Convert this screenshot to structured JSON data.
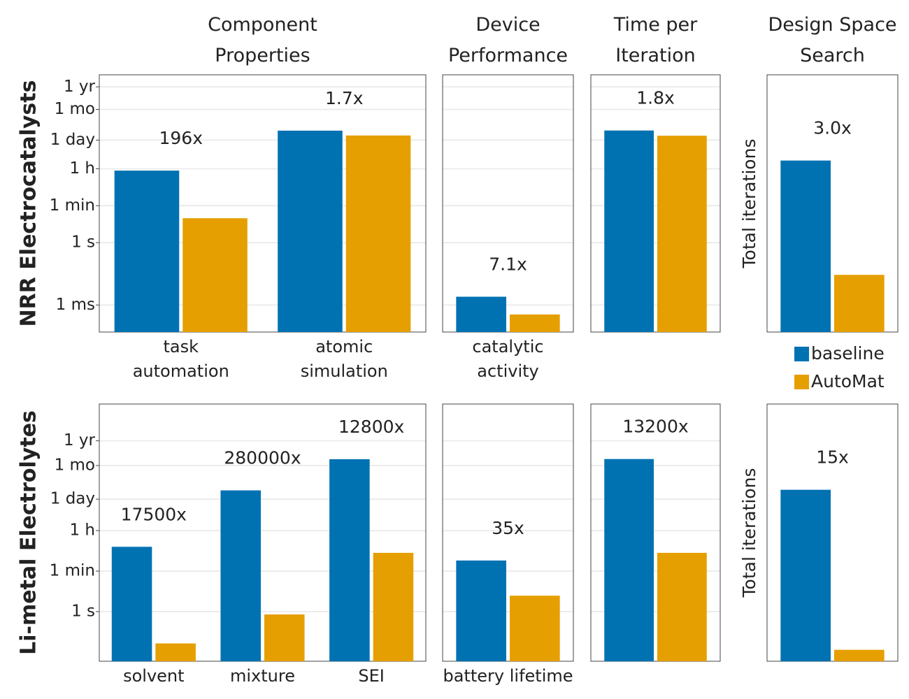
{
  "chart_data": [
    {
      "type": "bar",
      "title": "Component Properties",
      "ylabel": "NRR Electrocatalysts",
      "log_scale": true,
      "grid": true,
      "categories": [
        "task automation",
        "atomic simulation"
      ],
      "annotations": [
        "196x",
        "1.7x"
      ],
      "series": [
        {
          "name": "baseline",
          "color": "#0072b2",
          "values": [
            2940,
            246000
          ]
        },
        {
          "name": "AutoMat",
          "color": "#e69f00",
          "values": [
            15,
            144000
          ]
        }
      ],
      "ylim": [
        5e-05,
        120000000
      ],
      "yticks": [
        {
          "value": 0.001,
          "label": "1 ms"
        },
        {
          "value": 1,
          "label": "1 s"
        },
        {
          "value": 60,
          "label": "1 min"
        },
        {
          "value": 3600,
          "label": "1 h"
        },
        {
          "value": 86400,
          "label": "1 day"
        },
        {
          "value": 2592000,
          "label": "1 mo"
        },
        {
          "value": 31536000,
          "label": "1 yr"
        }
      ]
    },
    {
      "type": "bar",
      "title": "Device Performance",
      "log_scale": true,
      "grid": true,
      "ytick_labels": false,
      "categories": [
        "catalytic activity"
      ],
      "annotations": [
        "7.1x"
      ],
      "series": [
        {
          "name": "baseline",
          "color": "#0072b2",
          "values": [
            0.0025
          ]
        },
        {
          "name": "AutoMat",
          "color": "#e69f00",
          "values": [
            0.00035
          ]
        }
      ],
      "ylim": [
        5e-05,
        120000000
      ],
      "yticks": [
        0.001,
        1,
        60,
        3600,
        86400,
        2592000,
        31536000
      ]
    },
    {
      "type": "bar",
      "title": "Time per Iteration",
      "log_scale": true,
      "grid": true,
      "ytick_labels": false,
      "categories": [
        null
      ],
      "annotations": [
        "1.8x"
      ],
      "series": [
        {
          "name": "baseline",
          "color": "#0072b2",
          "values": [
            250000
          ]
        },
        {
          "name": "AutoMat",
          "color": "#e69f00",
          "values": [
            140000
          ]
        }
      ],
      "ylim": [
        5e-05,
        120000000
      ],
      "yticks": [
        0.001,
        1,
        60,
        3600,
        86400,
        2592000,
        31536000
      ]
    },
    {
      "type": "bar",
      "title": "Design Space Search",
      "ylabel": "Total iterations",
      "legend": "bottom",
      "categories": [
        null
      ],
      "annotations": [
        "3.0x"
      ],
      "series": [
        {
          "name": "baseline",
          "color": "#0072b2",
          "values": [
            3
          ]
        },
        {
          "name": "AutoMat",
          "color": "#e69f00",
          "values": [
            1
          ]
        }
      ],
      "ylim": [
        0,
        4.5
      ]
    },
    {
      "type": "bar",
      "ylabel": "Li-metal Electrolytes",
      "log_scale": true,
      "grid": true,
      "categories": [
        "solvent",
        "mixture",
        "SEI"
      ],
      "annotations": [
        "17500x",
        "280000x",
        "12800x"
      ],
      "series": [
        {
          "name": "baseline",
          "color": "#0072b2",
          "values": [
            700,
            210000,
            4900000
          ]
        },
        {
          "name": "AutoMat",
          "color": "#e69f00",
          "values": [
            0.04,
            0.75,
            380
          ]
        }
      ],
      "ylim": [
        0.0066,
        1300000000
      ],
      "yticks": [
        {
          "value": 1,
          "label": "1 s"
        },
        {
          "value": 60,
          "label": "1 min"
        },
        {
          "value": 3600,
          "label": "1 h"
        },
        {
          "value": 86400,
          "label": "1 day"
        },
        {
          "value": 2592000,
          "label": "1 mo"
        },
        {
          "value": 31536000,
          "label": "1 yr"
        }
      ]
    },
    {
      "type": "bar",
      "log_scale": true,
      "grid": true,
      "ytick_labels": false,
      "categories": [
        "battery lifetime"
      ],
      "annotations": [
        "35x"
      ],
      "series": [
        {
          "name": "baseline",
          "color": "#0072b2",
          "values": [
            175
          ]
        },
        {
          "name": "AutoMat",
          "color": "#e69f00",
          "values": [
            5
          ]
        }
      ],
      "ylim": [
        0.0066,
        1300000000
      ],
      "yticks": [
        1,
        60,
        3600,
        86400,
        2592000,
        31536000
      ]
    },
    {
      "type": "bar",
      "log_scale": true,
      "grid": true,
      "ytick_labels": false,
      "categories": [
        null
      ],
      "annotations": [
        "13200x"
      ],
      "series": [
        {
          "name": "baseline",
          "color": "#0072b2",
          "values": [
            5000000
          ]
        },
        {
          "name": "AutoMat",
          "color": "#e69f00",
          "values": [
            380
          ]
        }
      ],
      "ylim": [
        0.0066,
        1300000000
      ],
      "yticks": [
        1,
        60,
        3600,
        86400,
        2592000,
        31536000
      ]
    },
    {
      "type": "bar",
      "ylabel": "Total iterations",
      "categories": [
        null
      ],
      "annotations": [
        "15x"
      ],
      "series": [
        {
          "name": "baseline",
          "color": "#0072b2",
          "values": [
            3
          ]
        },
        {
          "name": "AutoMat",
          "color": "#e69f00",
          "values": [
            0.2
          ]
        }
      ],
      "ylim": [
        0,
        4.5
      ]
    }
  ]
}
